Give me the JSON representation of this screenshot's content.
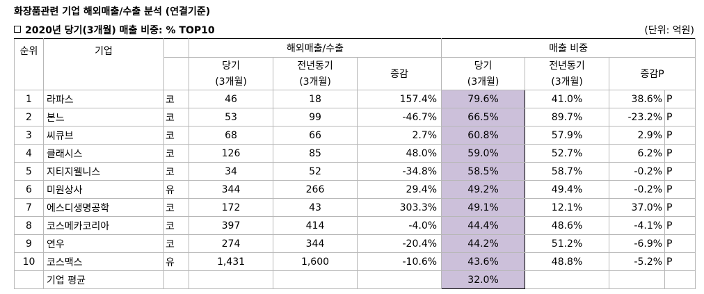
{
  "title": "화장품관련 기업 해외매출/수출 분석 (연결기준)",
  "subtitle": "2020년 당기(3개월) 매출 비중: % TOP10",
  "subtitle_marker": "ㅁ",
  "unit": "(단위: 억원)",
  "headers": {
    "rank": "순위",
    "company": "기업",
    "group_overseas": "해외매출/수출",
    "group_ratio": "매출 비중",
    "current": "당기",
    "current_sub": "(3개월)",
    "prev": "전년동기",
    "prev_sub": "(3개월)",
    "change": "증감",
    "change_p": "증감P"
  },
  "rows": [
    {
      "rank": "1",
      "company": "라파스",
      "market": "코",
      "cur": "46",
      "prev": "18",
      "chg": "157.4%",
      "r_cur": "79.6%",
      "r_prev": "41.0%",
      "r_chg": "38.6%",
      "p": "P"
    },
    {
      "rank": "2",
      "company": "본느",
      "market": "코",
      "cur": "53",
      "prev": "99",
      "chg": "-46.7%",
      "r_cur": "66.5%",
      "r_prev": "89.7%",
      "r_chg": "-23.2%",
      "p": "P"
    },
    {
      "rank": "3",
      "company": "씨큐브",
      "market": "코",
      "cur": "68",
      "prev": "66",
      "chg": "2.7%",
      "r_cur": "60.8%",
      "r_prev": "57.9%",
      "r_chg": "2.9%",
      "p": "P"
    },
    {
      "rank": "4",
      "company": "클래시스",
      "market": "코",
      "cur": "126",
      "prev": "85",
      "chg": "48.0%",
      "r_cur": "59.0%",
      "r_prev": "52.7%",
      "r_chg": "6.2%",
      "p": "P"
    },
    {
      "rank": "5",
      "company": "지티지웰니스",
      "market": "코",
      "cur": "34",
      "prev": "52",
      "chg": "-34.8%",
      "r_cur": "58.5%",
      "r_prev": "58.7%",
      "r_chg": "-0.2%",
      "p": "P"
    },
    {
      "rank": "6",
      "company": "미원상사",
      "market": "유",
      "cur": "344",
      "prev": "266",
      "chg": "29.4%",
      "r_cur": "49.2%",
      "r_prev": "49.4%",
      "r_chg": "-0.2%",
      "p": "P"
    },
    {
      "rank": "7",
      "company": "에스디생명공학",
      "market": "코",
      "cur": "172",
      "prev": "43",
      "chg": "303.3%",
      "r_cur": "49.1%",
      "r_prev": "12.1%",
      "r_chg": "37.0%",
      "p": "P"
    },
    {
      "rank": "8",
      "company": "코스메카코리아",
      "market": "코",
      "cur": "397",
      "prev": "414",
      "chg": "-4.0%",
      "r_cur": "44.4%",
      "r_prev": "48.6%",
      "r_chg": "-4.1%",
      "p": "P"
    },
    {
      "rank": "9",
      "company": "연우",
      "market": "코",
      "cur": "274",
      "prev": "344",
      "chg": "-20.4%",
      "r_cur": "44.2%",
      "r_prev": "51.2%",
      "r_chg": "-6.9%",
      "p": "P"
    },
    {
      "rank": "10",
      "company": "코스맥스",
      "market": "유",
      "cur": "1,431",
      "prev": "1,600",
      "chg": "-10.6%",
      "r_cur": "43.6%",
      "r_prev": "48.8%",
      "r_chg": "-5.2%",
      "p": "P"
    }
  ],
  "average": {
    "label": "기업 평균",
    "r_cur": "32.0%"
  },
  "colors": {
    "highlight": "#ccc0da",
    "grid": "#b7b7b7"
  }
}
